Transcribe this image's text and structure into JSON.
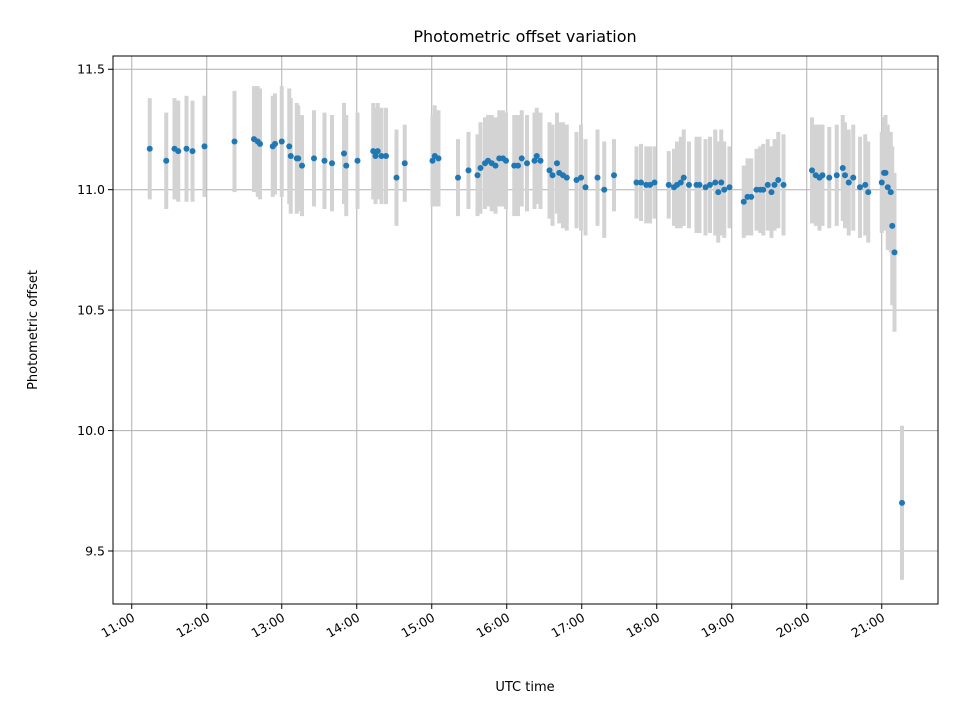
{
  "chart_data": {
    "type": "scatter",
    "title": "Photometric offset variation",
    "xlabel": "UTC time",
    "ylabel": "Photometric offset",
    "xlim": [
      10.75,
      21.75
    ],
    "ylim": [
      9.28,
      11.555
    ],
    "grid": true,
    "series_color": "#1f77b4",
    "errorbar_color": "#d3d3d3",
    "x_ticks": [
      {
        "hour": 11,
        "label": "11:00"
      },
      {
        "hour": 12,
        "label": "12:00"
      },
      {
        "hour": 13,
        "label": "13:00"
      },
      {
        "hour": 14,
        "label": "14:00"
      },
      {
        "hour": 15,
        "label": "15:00"
      },
      {
        "hour": 16,
        "label": "16:00"
      },
      {
        "hour": 17,
        "label": "17:00"
      },
      {
        "hour": 18,
        "label": "18:00"
      },
      {
        "hour": 19,
        "label": "19:00"
      },
      {
        "hour": 20,
        "label": "20:00"
      },
      {
        "hour": 21,
        "label": "21:00"
      }
    ],
    "y_ticks": [
      {
        "value": 9.5,
        "label": "9.5"
      },
      {
        "value": 10.0,
        "label": "10.0"
      },
      {
        "value": 10.5,
        "label": "10.5"
      },
      {
        "value": 11.0,
        "label": "11.0"
      },
      {
        "value": 11.5,
        "label": "11.5"
      }
    ],
    "points": [
      [
        11.24,
        11.17,
        0.21
      ],
      [
        11.46,
        11.12,
        0.2
      ],
      [
        11.57,
        11.17,
        0.21
      ],
      [
        11.62,
        11.16,
        0.21
      ],
      [
        11.73,
        11.17,
        0.22
      ],
      [
        11.81,
        11.16,
        0.21
      ],
      [
        11.97,
        11.18,
        0.21
      ],
      [
        12.37,
        11.2,
        0.21
      ],
      [
        12.63,
        11.21,
        0.22
      ],
      [
        12.68,
        11.2,
        0.23
      ],
      [
        12.71,
        11.19,
        0.23
      ],
      [
        12.88,
        11.18,
        0.21
      ],
      [
        12.91,
        11.19,
        0.21
      ],
      [
        13.0,
        11.2,
        0.23
      ],
      [
        13.1,
        11.18,
        0.24
      ],
      [
        13.12,
        11.14,
        0.24
      ],
      [
        13.2,
        11.13,
        0.23
      ],
      [
        13.22,
        11.13,
        0.22
      ],
      [
        13.27,
        11.1,
        0.21
      ],
      [
        13.43,
        11.13,
        0.2
      ],
      [
        13.57,
        11.12,
        0.2
      ],
      [
        13.67,
        11.11,
        0.2
      ],
      [
        13.83,
        11.15,
        0.21
      ],
      [
        13.86,
        11.1,
        0.21
      ],
      [
        14.01,
        11.12,
        0.2
      ],
      [
        14.22,
        11.16,
        0.2
      ],
      [
        14.25,
        11.14,
        0.2
      ],
      [
        14.28,
        11.16,
        0.2
      ],
      [
        14.33,
        11.14,
        0.2
      ],
      [
        14.39,
        11.14,
        0.2
      ],
      [
        14.53,
        11.05,
        0.2
      ],
      [
        14.64,
        11.11,
        0.16
      ],
      [
        15.01,
        11.12,
        0.19
      ],
      [
        15.04,
        11.14,
        0.21
      ],
      [
        15.09,
        11.13,
        0.2
      ],
      [
        15.35,
        11.05,
        0.16
      ],
      [
        15.49,
        11.08,
        0.16
      ],
      [
        15.61,
        11.06,
        0.17
      ],
      [
        15.65,
        11.09,
        0.19
      ],
      [
        15.71,
        11.11,
        0.19
      ],
      [
        15.75,
        11.12,
        0.19
      ],
      [
        15.8,
        11.11,
        0.2
      ],
      [
        15.85,
        11.1,
        0.2
      ],
      [
        15.9,
        11.13,
        0.2
      ],
      [
        15.95,
        11.13,
        0.2
      ],
      [
        15.99,
        11.12,
        0.2
      ],
      [
        16.1,
        11.1,
        0.21
      ],
      [
        16.15,
        11.1,
        0.21
      ],
      [
        16.2,
        11.13,
        0.2
      ],
      [
        16.27,
        11.11,
        0.2
      ],
      [
        16.37,
        11.12,
        0.2
      ],
      [
        16.4,
        11.14,
        0.2
      ],
      [
        16.45,
        11.12,
        0.2
      ],
      [
        16.57,
        11.08,
        0.2
      ],
      [
        16.61,
        11.06,
        0.21
      ],
      [
        16.67,
        11.11,
        0.21
      ],
      [
        16.7,
        11.07,
        0.21
      ],
      [
        16.75,
        11.06,
        0.22
      ],
      [
        16.8,
        11.05,
        0.22
      ],
      [
        16.93,
        11.04,
        0.2
      ],
      [
        16.99,
        11.05,
        0.22
      ],
      [
        17.05,
        11.01,
        0.2
      ],
      [
        17.21,
        11.05,
        0.2
      ],
      [
        17.3,
        11.0,
        0.2
      ],
      [
        17.43,
        11.06,
        0.15
      ],
      [
        17.73,
        11.03,
        0.15
      ],
      [
        17.79,
        11.03,
        0.16
      ],
      [
        17.86,
        11.02,
        0.16
      ],
      [
        17.91,
        11.02,
        0.16
      ],
      [
        17.97,
        11.03,
        0.15
      ],
      [
        18.16,
        11.02,
        0.14
      ],
      [
        18.23,
        11.01,
        0.16
      ],
      [
        18.27,
        11.02,
        0.18
      ],
      [
        18.32,
        11.03,
        0.19
      ],
      [
        18.36,
        11.05,
        0.2
      ],
      [
        18.43,
        11.02,
        0.18
      ],
      [
        18.53,
        11.02,
        0.2
      ],
      [
        18.57,
        11.02,
        0.2
      ],
      [
        18.65,
        11.01,
        0.2
      ],
      [
        18.71,
        11.02,
        0.2
      ],
      [
        18.78,
        11.03,
        0.22
      ],
      [
        18.82,
        10.99,
        0.21
      ],
      [
        18.86,
        11.03,
        0.22
      ],
      [
        18.9,
        11.0,
        0.2
      ],
      [
        18.97,
        11.01,
        0.17
      ],
      [
        19.16,
        10.95,
        0.15
      ],
      [
        19.21,
        10.97,
        0.16
      ],
      [
        19.26,
        10.97,
        0.16
      ],
      [
        19.33,
        11.0,
        0.17
      ],
      [
        19.38,
        11.0,
        0.18
      ],
      [
        19.42,
        11.0,
        0.19
      ],
      [
        19.48,
        11.02,
        0.19
      ],
      [
        19.53,
        10.99,
        0.19
      ],
      [
        19.57,
        11.02,
        0.19
      ],
      [
        19.62,
        11.04,
        0.2
      ],
      [
        19.69,
        11.02,
        0.21
      ],
      [
        20.07,
        11.08,
        0.22
      ],
      [
        20.12,
        11.06,
        0.21
      ],
      [
        20.17,
        11.05,
        0.22
      ],
      [
        20.21,
        11.06,
        0.21
      ],
      [
        20.3,
        11.05,
        0.21
      ],
      [
        20.4,
        11.06,
        0.21
      ],
      [
        20.48,
        11.09,
        0.22
      ],
      [
        20.51,
        11.06,
        0.22
      ],
      [
        20.56,
        11.03,
        0.22
      ],
      [
        20.62,
        11.05,
        0.22
      ],
      [
        20.71,
        11.01,
        0.21
      ],
      [
        20.78,
        11.02,
        0.21
      ],
      [
        20.82,
        10.99,
        0.21
      ],
      [
        21.0,
        11.03,
        0.21
      ],
      [
        21.03,
        11.07,
        0.23
      ],
      [
        21.05,
        11.07,
        0.24
      ],
      [
        21.08,
        11.01,
        0.26
      ],
      [
        21.12,
        10.99,
        0.25
      ],
      [
        21.14,
        10.85,
        0.33
      ],
      [
        21.17,
        10.74,
        0.33
      ],
      [
        21.27,
        9.7,
        0.32
      ]
    ]
  }
}
